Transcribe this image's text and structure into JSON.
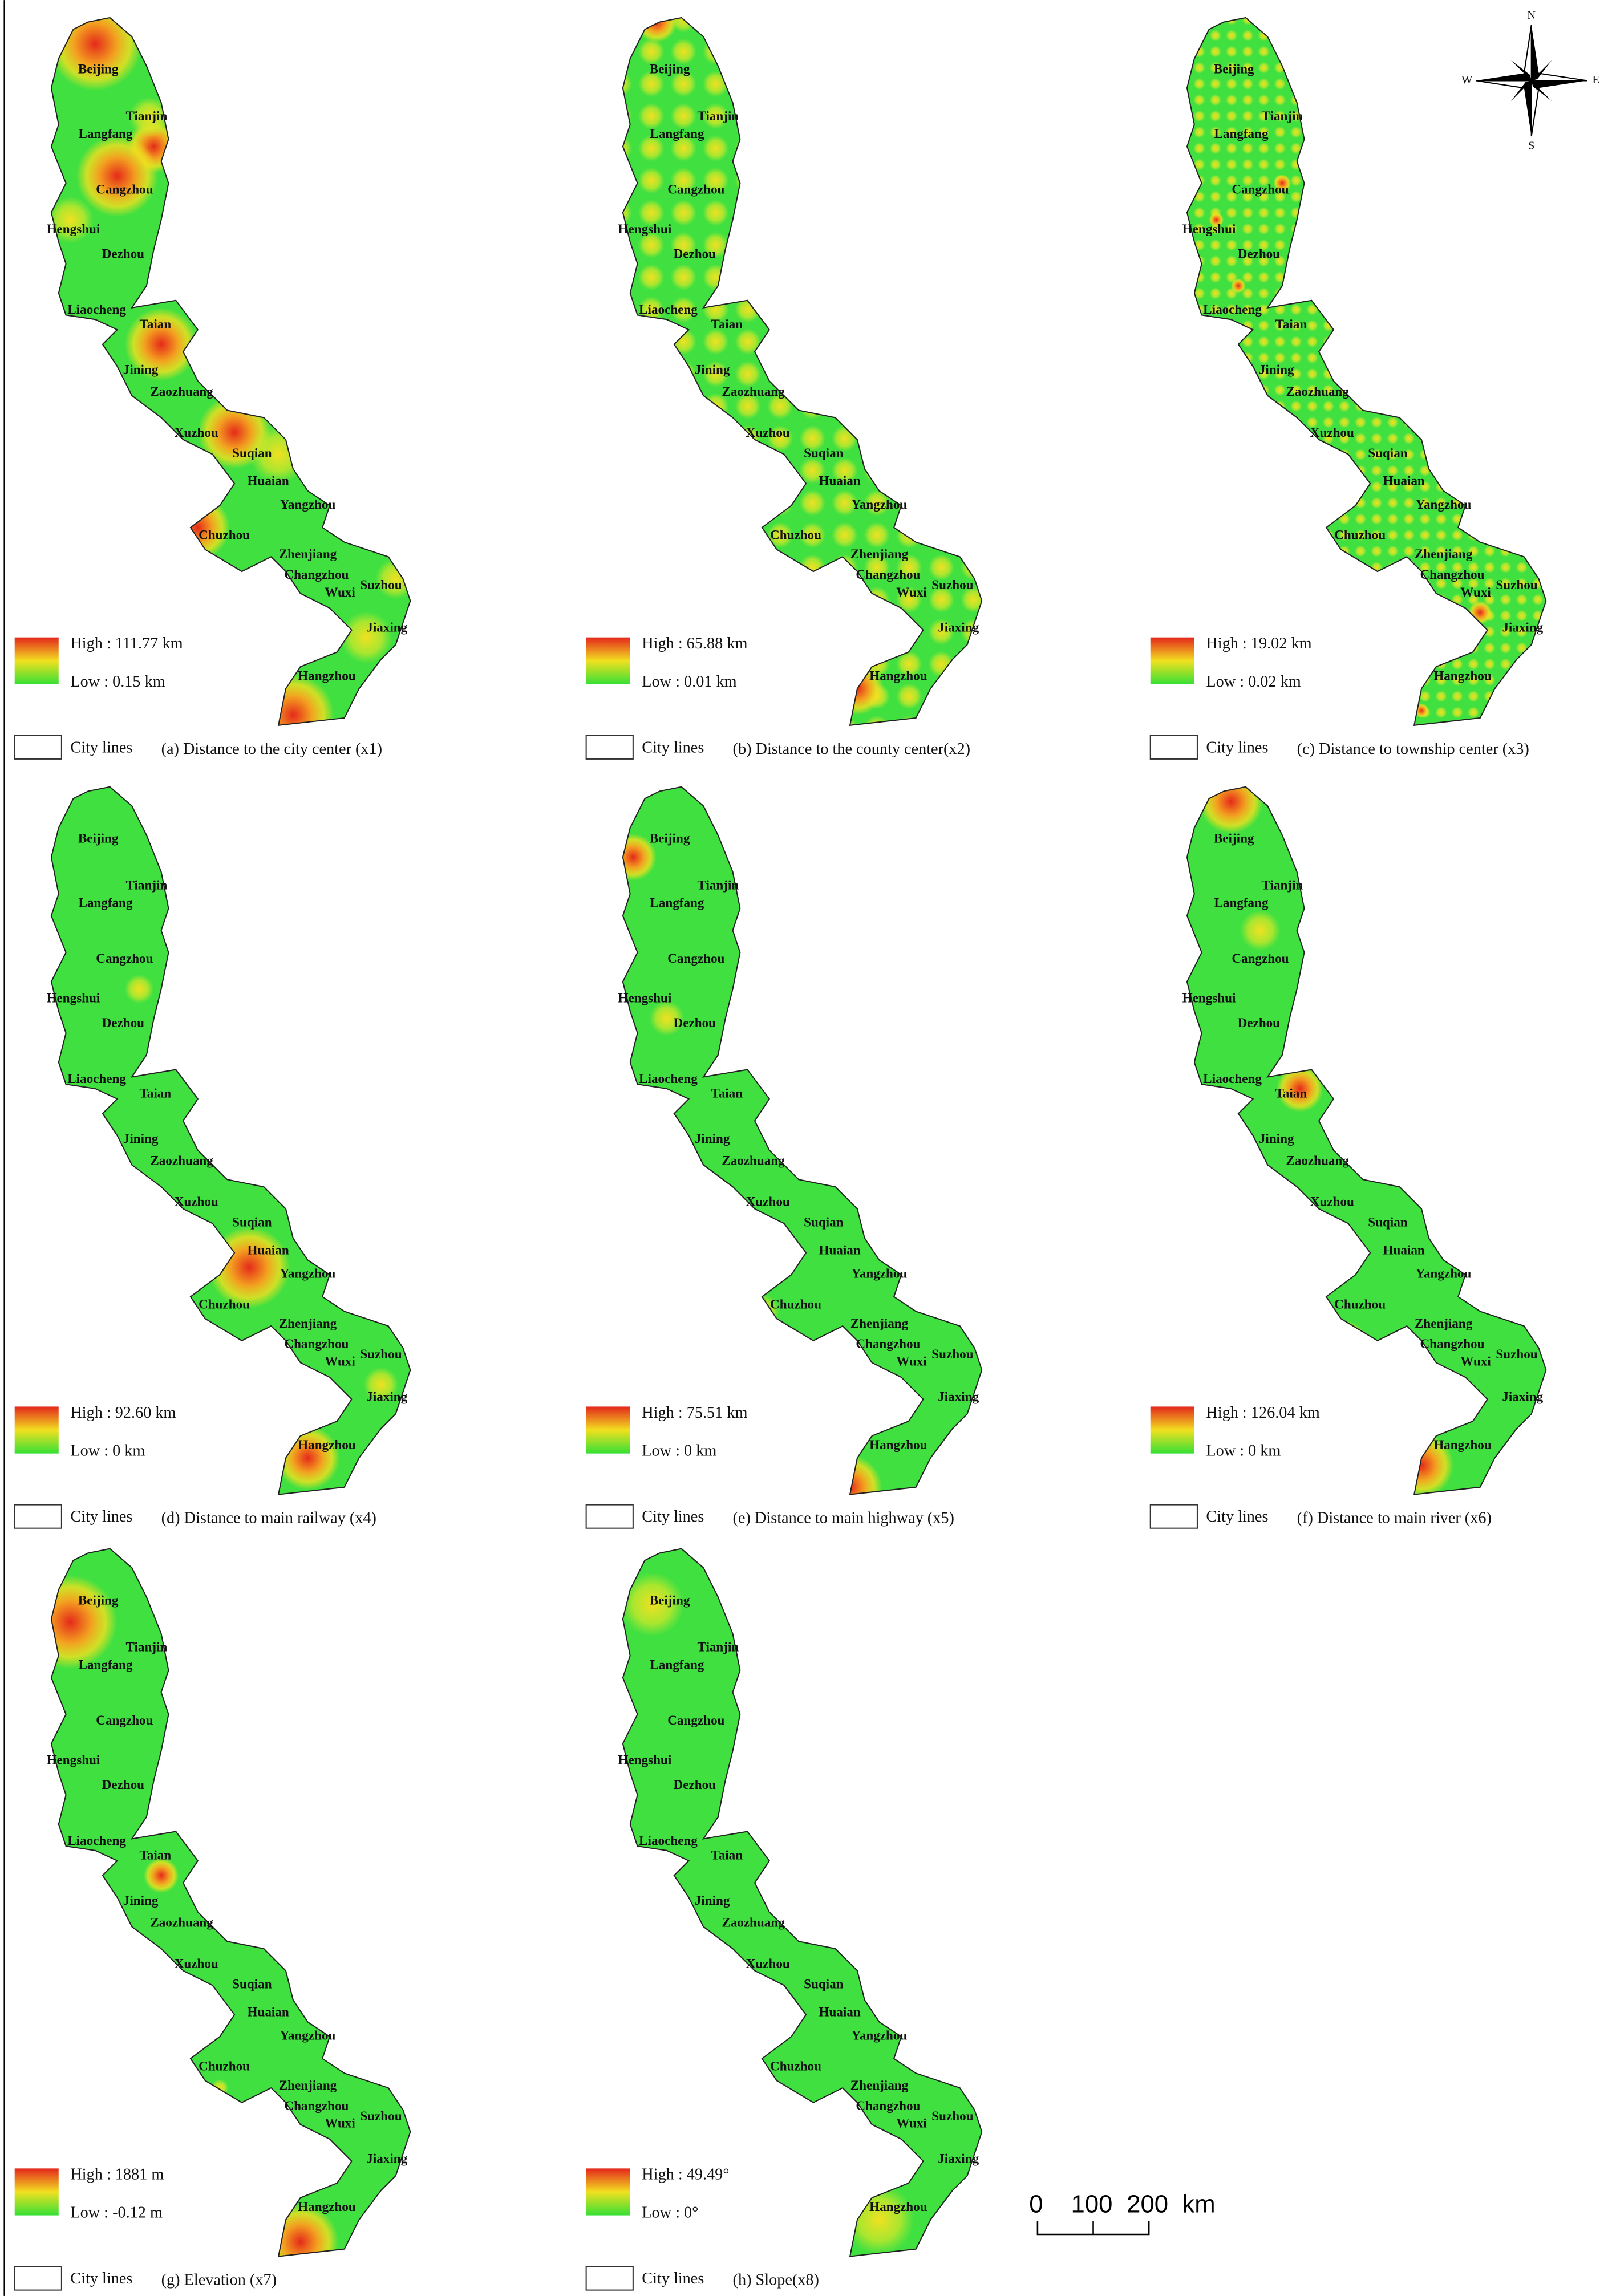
{
  "cities": [
    "Beijing",
    "Tianjin",
    "Langfang",
    "Cangzhou",
    "Hengshui",
    "Dezhou",
    "Liaocheng",
    "Taian",
    "Jining",
    "Zaozhuang",
    "Xuzhou",
    "Suqian",
    "Huaian",
    "Yangzhou",
    "Chuzhou",
    "Zhenjiang",
    "Changzhou",
    "Wuxi",
    "Suzhou",
    "Jiaxing",
    "Hangzhou"
  ],
  "legend_line_label": "City lines",
  "panels": [
    {
      "caption": "(a)  Distance to the city center (x1)",
      "legend_high": "High : 111.77 km",
      "legend_low": "Low : 0.15 km"
    },
    {
      "caption": "(b) Distance to the county center(x2)",
      "legend_high": "High : 65.88 km",
      "legend_low": "Low : 0.01 km"
    },
    {
      "caption": "(c) Distance to township center (x3)",
      "legend_high": "High : 19.02 km",
      "legend_low": "Low : 0.02 km"
    },
    {
      "caption": "(d) Distance to main railway (x4)",
      "legend_high": "High : 92.60 km",
      "legend_low": "Low : 0 km"
    },
    {
      "caption": "(e) Distance to main highway (x5)",
      "legend_high": "High : 75.51 km",
      "legend_low": "Low : 0 km"
    },
    {
      "caption": "(f) Distance to main river (x6)",
      "legend_high": "High : 126.04 km",
      "legend_low": "Low : 0 km"
    },
    {
      "caption": "(g) Elevation (x7)",
      "legend_high": "High : 1881 m",
      "legend_low": "Low : -0.12 m"
    },
    {
      "caption": "(h) Slope(x8)",
      "legend_high": "High : 49.49°",
      "legend_low": "Low : 0°"
    }
  ],
  "compass": {
    "north": "N",
    "east": "E",
    "south": "S",
    "west": "W"
  },
  "scale_bar": {
    "labels": [
      "0",
      "100",
      "200"
    ],
    "unit": "km"
  }
}
